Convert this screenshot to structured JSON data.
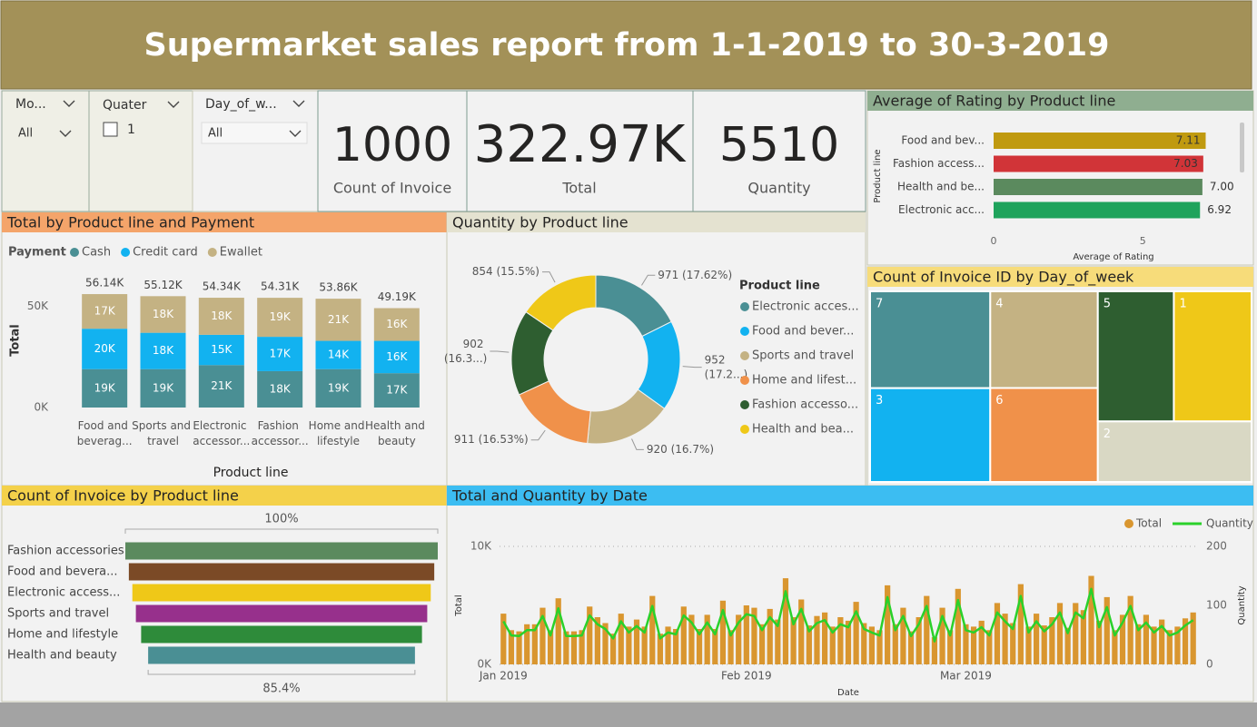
{
  "header": {
    "title": "Supermarket sales report from 1-1-2019 to 30-3-2019"
  },
  "slicers": [
    {
      "label": "Mo...",
      "value": "All"
    },
    {
      "label": "Quater",
      "option": "1"
    },
    {
      "label": "Day_of_w...",
      "value": "All"
    }
  ],
  "cards": [
    {
      "value": "1000",
      "label": "Count of Invoice"
    },
    {
      "value": "322.97K",
      "label": "Total"
    },
    {
      "value": "5510",
      "label": "Quantity"
    }
  ],
  "chart_data": [
    {
      "type": "bar",
      "stacked": true,
      "title": "Total by Product line and Payment",
      "legend_title": "Payment",
      "legend": "top-left",
      "x_label": "Product line",
      "y_label": "Total",
      "categories": [
        "Food and beverag...",
        "Sports and travel",
        "Electronic accessor...",
        "Fashion accessor...",
        "Home and lifestyle",
        "Health and beauty"
      ],
      "ylim": [
        0,
        62000
      ],
      "yticks": [
        {
          "value": 0,
          "label": "0K"
        },
        {
          "value": 50000,
          "label": "50K"
        }
      ],
      "series": [
        {
          "name": "Cash",
          "color": "#4a8f94",
          "values": [
            19000,
            19000,
            21000,
            18000,
            19000,
            17000
          ],
          "value_labels": [
            "19K",
            "19K",
            "21K",
            "18K",
            "19K",
            "17K"
          ]
        },
        {
          "name": "Credit card",
          "color": "#12b2f0",
          "values": [
            20000,
            18000,
            15000,
            17000,
            14000,
            16000
          ],
          "value_labels": [
            "20K",
            "18K",
            "15K",
            "17K",
            "14K",
            "16K"
          ]
        },
        {
          "name": "Ewallet",
          "color": "#c4b283",
          "values": [
            17140,
            18120,
            18340,
            19310,
            20860,
            16190
          ],
          "value_labels": [
            "17K",
            "18K",
            "18K",
            "19K",
            "21K",
            "16K"
          ]
        }
      ],
      "totals": [
        56140,
        55120,
        54340,
        54310,
        53860,
        49190
      ],
      "total_labels": [
        "56.14K",
        "55.12K",
        "54.34K",
        "54.31K",
        "53.86K",
        "49.19K"
      ]
    },
    {
      "type": "pie",
      "donut": true,
      "title": "Quantity by Product line",
      "legend_title": "Product line",
      "legend": "right",
      "categories": [
        "Electronic acces...",
        "Food and bever...",
        "Sports and travel",
        "Home and lifest...",
        "Fashion accesso...",
        "Health and bea..."
      ],
      "values": [
        971,
        952,
        920,
        911,
        902,
        854
      ],
      "value_labels": [
        "971 (17.62%)",
        "952 (17.2...)",
        "920 (16.7%)",
        "911 (16.53%)",
        "902 (16.3...)",
        "854 (15.5%)"
      ],
      "colors": [
        "#4a8f94",
        "#12b2f0",
        "#c4b283",
        "#f0914a",
        "#2e5e30",
        "#efc818"
      ]
    },
    {
      "type": "bar",
      "orientation": "horizontal",
      "title": "Average of Rating by Product line",
      "x_label": "Average of Rating",
      "y_label": "Product line",
      "categories": [
        "Food and bev...",
        "Fashion access...",
        "Health and be...",
        "Electronic acc..."
      ],
      "values": [
        7.11,
        7.03,
        7.0,
        6.92
      ],
      "value_labels": [
        "7.11",
        "7.03",
        "7.00",
        "6.92"
      ],
      "colors": [
        "#c09a10",
        "#d13438",
        "#5b8a5e",
        "#1fa35c"
      ],
      "xlim": [
        0,
        8.1
      ],
      "xticks": [
        0,
        5
      ]
    },
    {
      "type": "treemap",
      "title": "Count of Invoice ID by Day_of_week",
      "categories": [
        "7",
        "4",
        "5",
        "1",
        "3",
        "6",
        "2"
      ],
      "values": [
        160,
        143,
        136,
        139,
        155,
        139,
        128
      ],
      "colors": [
        "#4a8f94",
        "#c4b283",
        "#2e5e30",
        "#efc818",
        "#12b2f0",
        "#f0914a",
        "#d9d8c4"
      ]
    },
    {
      "type": "funnel",
      "title": "Count of Invoice by Product line",
      "categories": [
        "Fashion accessories",
        "Food and bevera...",
        "Electronic access...",
        "Sports and travel",
        "Home and lifestyle",
        "Health and beauty"
      ],
      "values": [
        178,
        174,
        170,
        166,
        160,
        152
      ],
      "colors": [
        "#5b8a5e",
        "#7b4a26",
        "#efc818",
        "#97308c",
        "#2e8b3a",
        "#4a8f94"
      ],
      "top_label": "100%",
      "bottom_label": "85.4%"
    },
    {
      "type": "combo",
      "title": "Total and Quantity by Date",
      "x_label": "Date",
      "y_label": "Total",
      "y2_label": "Quantity",
      "legend": "top-right",
      "grid": true,
      "categories": [
        "Jan 2019",
        null,
        null,
        null,
        null,
        null,
        null,
        null,
        null,
        null,
        null,
        null,
        null,
        null,
        null,
        null,
        null,
        null,
        null,
        null,
        null,
        null,
        null,
        null,
        null,
        null,
        null,
        null,
        null,
        null,
        null,
        "Feb 2019",
        null,
        null,
        null,
        null,
        null,
        null,
        null,
        null,
        null,
        null,
        null,
        null,
        null,
        null,
        null,
        null,
        null,
        null,
        null,
        null,
        null,
        null,
        null,
        null,
        null,
        null,
        null,
        "Mar 2019",
        null,
        null,
        null,
        null,
        null,
        null,
        null,
        null,
        null,
        null,
        null,
        null,
        null,
        null,
        null,
        null,
        null,
        null,
        null,
        null,
        null,
        null,
        null,
        null,
        null,
        null,
        null,
        null,
        null
      ],
      "ylim": [
        0,
        10000
      ],
      "yticks": [
        {
          "value": 0,
          "label": "0K"
        },
        {
          "value": 10000,
          "label": "10K"
        }
      ],
      "y2lim": [
        0,
        200
      ],
      "y2ticks": [
        0,
        100,
        200
      ],
      "series": [
        {
          "name": "Total",
          "type": "bar",
          "color": "#d9962f",
          "values": [
            4300,
            2900,
            2800,
            3400,
            3400,
            4800,
            2900,
            5600,
            2800,
            2800,
            2900,
            4900,
            4000,
            3500,
            2600,
            4300,
            3200,
            3800,
            3200,
            5800,
            2600,
            3200,
            3000,
            4900,
            4200,
            3000,
            4200,
            3000,
            5400,
            2900,
            4200,
            5000,
            4800,
            3400,
            4700,
            3800,
            7300,
            4000,
            5500,
            3300,
            4100,
            4400,
            3200,
            4000,
            3700,
            5300,
            3500,
            3200,
            2900,
            6700,
            3400,
            4800,
            2800,
            4000,
            5800,
            2300,
            4800,
            2900,
            6400,
            3400,
            3200,
            3700,
            2900,
            5200,
            4300,
            3500,
            6800,
            3200,
            4300,
            3300,
            4000,
            5200,
            3100,
            5200,
            4600,
            7500,
            3700,
            5700,
            2900,
            4200,
            5800,
            3400,
            4200,
            3200,
            3800,
            2900,
            3200,
            3900,
            4400
          ]
        },
        {
          "name": "Quantity",
          "type": "line",
          "axis": "y2",
          "color": "#2ad12a",
          "values": [
            73,
            49,
            48,
            58,
            58,
            82,
            49,
            95,
            48,
            48,
            49,
            83,
            68,
            60,
            44,
            73,
            54,
            65,
            54,
            99,
            44,
            54,
            51,
            83,
            71,
            51,
            71,
            51,
            92,
            49,
            71,
            85,
            82,
            58,
            80,
            65,
            124,
            68,
            94,
            56,
            70,
            75,
            54,
            68,
            63,
            90,
            60,
            54,
            49,
            114,
            58,
            82,
            48,
            68,
            99,
            39,
            82,
            49,
            109,
            58,
            54,
            63,
            49,
            88,
            73,
            60,
            116,
            54,
            73,
            56,
            68,
            88,
            53,
            88,
            78,
            128,
            63,
            97,
            49,
            71,
            99,
            58,
            71,
            54,
            65,
            49,
            54,
            66,
            75
          ]
        }
      ]
    }
  ]
}
